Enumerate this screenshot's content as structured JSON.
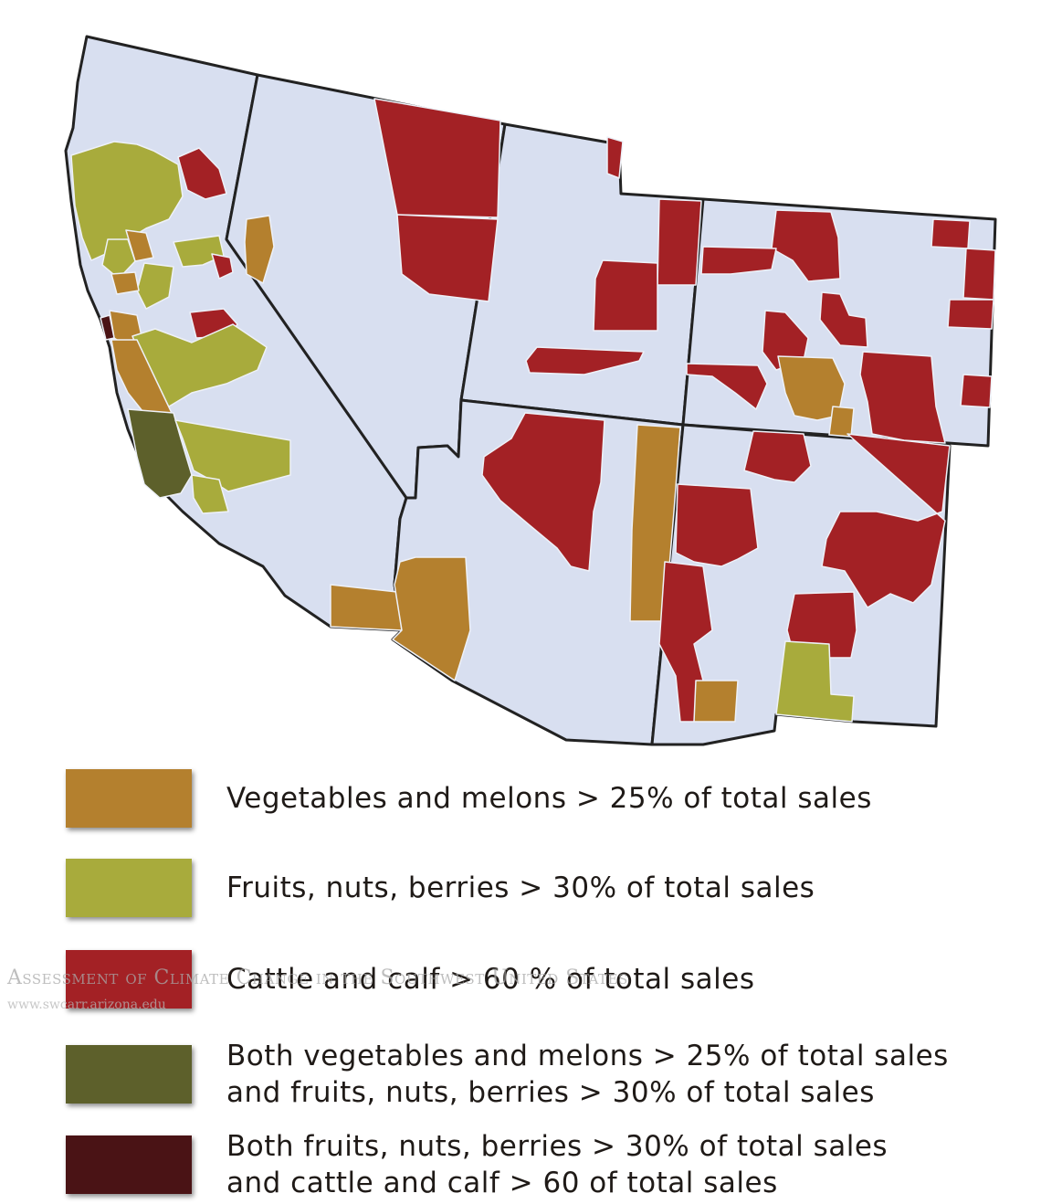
{
  "map": {
    "states": [
      "California",
      "Nevada",
      "Utah",
      "Colorado",
      "Arizona",
      "New Mexico"
    ]
  },
  "legend": [
    {
      "label": "Vegetables and melons > 25% of total sales",
      "color": "#b4802e"
    },
    {
      "label": "Fruits, nuts, berries > 30% of total sales",
      "color": "#a8ab3c"
    },
    {
      "label": "Cattle and calf > 60 % of total sales",
      "color": "#a32125"
    },
    {
      "label": "Both vegetables and melons > 25% of total sales\nand fruits, nuts, berries > 30% of total sales",
      "color": "#5d602b"
    },
    {
      "label": "Both fruits, nuts, berries > 30% of total sales\nand cattle and calf > 60 of total sales",
      "color": "#4a1315"
    }
  ],
  "watermark": {
    "title": "Assessment of Climate Change in the Southwest United States",
    "url": "www.swcarr.arizona.edu"
  }
}
